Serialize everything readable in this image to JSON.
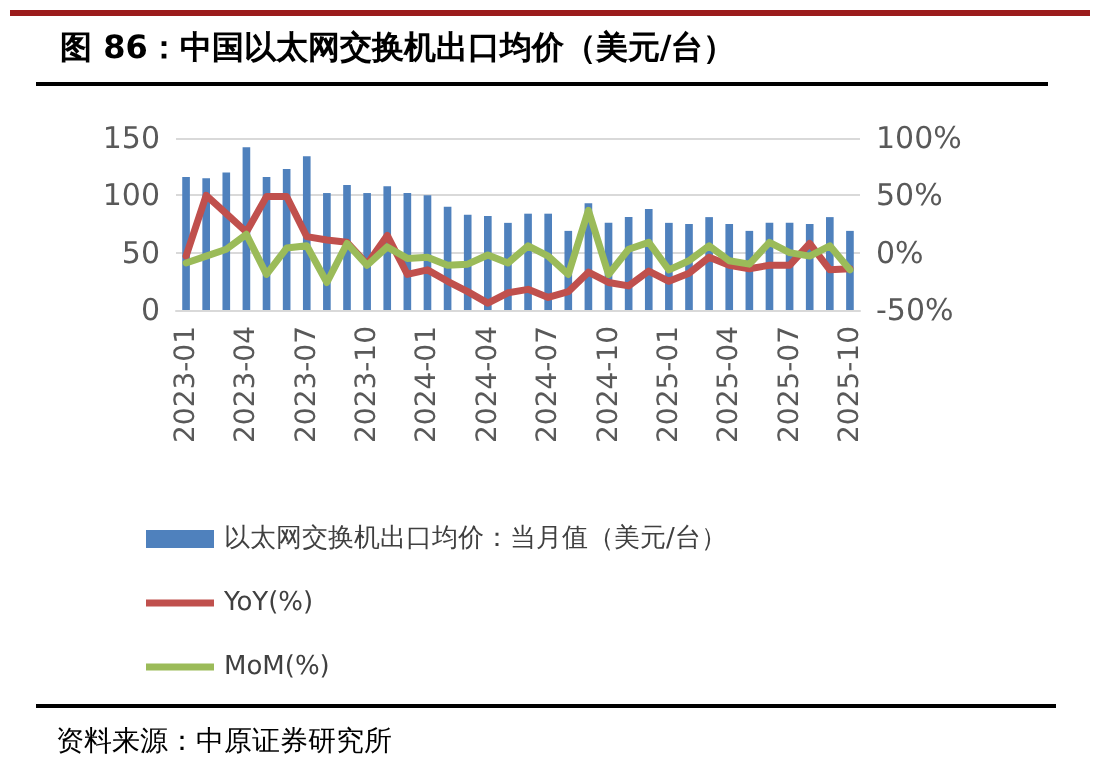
{
  "chart_data": {
    "type": "bar",
    "title": "图 86：中国以太网交换机出口均价（美元/台）",
    "categories": [
      "2023-01",
      null,
      null,
      "2023-04",
      null,
      null,
      "2023-07",
      null,
      null,
      "2023-10",
      null,
      null,
      "2024-01",
      null,
      null,
      "2024-04",
      null,
      null,
      "2024-07",
      null,
      null,
      "2024-10",
      null,
      null,
      "2025-01",
      null,
      null,
      "2025-04",
      null,
      null,
      "2025-07",
      null,
      null,
      "2025-10"
    ],
    "series": [
      {
        "name": "以太网交换机出口均价：当月值（美元/台）",
        "color": "#4f81bd",
        "values": [
          116,
          115,
          120,
          142,
          116,
          123,
          134,
          102,
          109,
          102,
          108,
          102,
          100,
          90,
          83,
          82,
          76,
          84,
          84,
          69,
          93,
          76,
          81,
          88,
          76,
          75,
          81,
          75,
          69,
          76,
          76,
          75,
          81,
          69
        ]
      },
      {
        "name": "YoY(%)",
        "type": "line",
        "axis": "y2",
        "color": "#c0504d",
        "values": [
          -3,
          50,
          34,
          18,
          49,
          49,
          14,
          11,
          9,
          -10,
          15,
          -19,
          -15,
          -25,
          -34,
          -44,
          -35,
          -32,
          -39,
          -34,
          -17,
          -26,
          -29,
          -16,
          -25,
          -18,
          -4,
          -11,
          -14,
          -11,
          -11,
          8,
          -15,
          -14
        ]
      },
      {
        "name": "MoM(%)",
        "type": "line",
        "axis": "y2",
        "color": "#9bbb59",
        "values": [
          -9,
          -3,
          3,
          16,
          -19,
          4,
          6,
          -26,
          8,
          -11,
          5,
          -5,
          -4,
          -11,
          -10,
          -2,
          -9,
          6,
          -3,
          -19,
          37,
          -19,
          3,
          9,
          -15,
          -7,
          6,
          -7,
          -10,
          9,
          0,
          -3,
          6,
          -15
        ]
      }
    ],
    "ylim": [
      0,
      150
    ],
    "yticks": [
      0,
      50,
      100,
      150
    ],
    "y2lim": [
      -50,
      100
    ],
    "y2ticks": [
      {
        "value": -50,
        "label": "-50%"
      },
      {
        "value": 0,
        "label": "0%"
      },
      {
        "value": 50,
        "label": "50%"
      },
      {
        "value": 100,
        "label": "100%"
      }
    ],
    "grid": "y",
    "legend": "bottom",
    "marker": "none",
    "line_style": "solid",
    "annotations": [
      "资料来源：中原证券研究所"
    ]
  }
}
